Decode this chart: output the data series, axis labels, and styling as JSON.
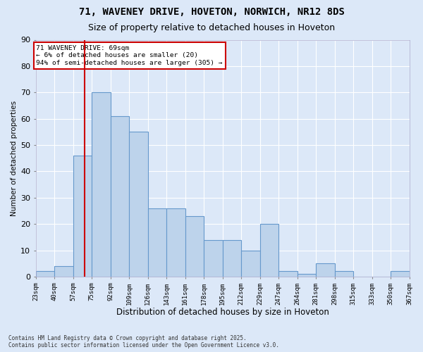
{
  "title": "71, WAVENEY DRIVE, HOVETON, NORWICH, NR12 8DS",
  "subtitle": "Size of property relative to detached houses in Hoveton",
  "xlabel": "Distribution of detached houses by size in Hoveton",
  "ylabel": "Number of detached properties",
  "footer1": "Contains HM Land Registry data © Crown copyright and database right 2025.",
  "footer2": "Contains public sector information licensed under the Open Government Licence v3.0.",
  "annotation_title": "71 WAVENEY DRIVE: 69sqm",
  "annotation_line1": "← 6% of detached houses are smaller (20)",
  "annotation_line2": "94% of semi-detached houses are larger (305) →",
  "bar_heights": [
    2,
    4,
    46,
    70,
    61,
    55,
    26,
    26,
    23,
    14,
    14,
    10,
    20,
    2,
    1,
    5,
    2,
    0,
    0,
    2
  ],
  "bar_color": "#bdd3eb",
  "bar_edge_color": "#6699cc",
  "background_color": "#dce8f8",
  "plot_bg_color": "#dce8f8",
  "grid_color": "#ffffff",
  "vline_color": "#cc0000",
  "vline_bin_index": 2.6,
  "annotation_box_color": "#cc0000",
  "ylim": [
    0,
    90
  ],
  "yticks": [
    0,
    10,
    20,
    30,
    40,
    50,
    60,
    70,
    80,
    90
  ],
  "tick_labels": [
    "23sqm",
    "40sqm",
    "57sqm",
    "75sqm",
    "92sqm",
    "109sqm",
    "126sqm",
    "143sqm",
    "161sqm",
    "178sqm",
    "195sqm",
    "212sqm",
    "229sqm",
    "247sqm",
    "264sqm",
    "281sqm",
    "298sqm",
    "315sqm",
    "333sqm",
    "350sqm",
    "367sqm"
  ],
  "num_bars": 20,
  "title_fontsize": 10,
  "subtitle_fontsize": 9
}
